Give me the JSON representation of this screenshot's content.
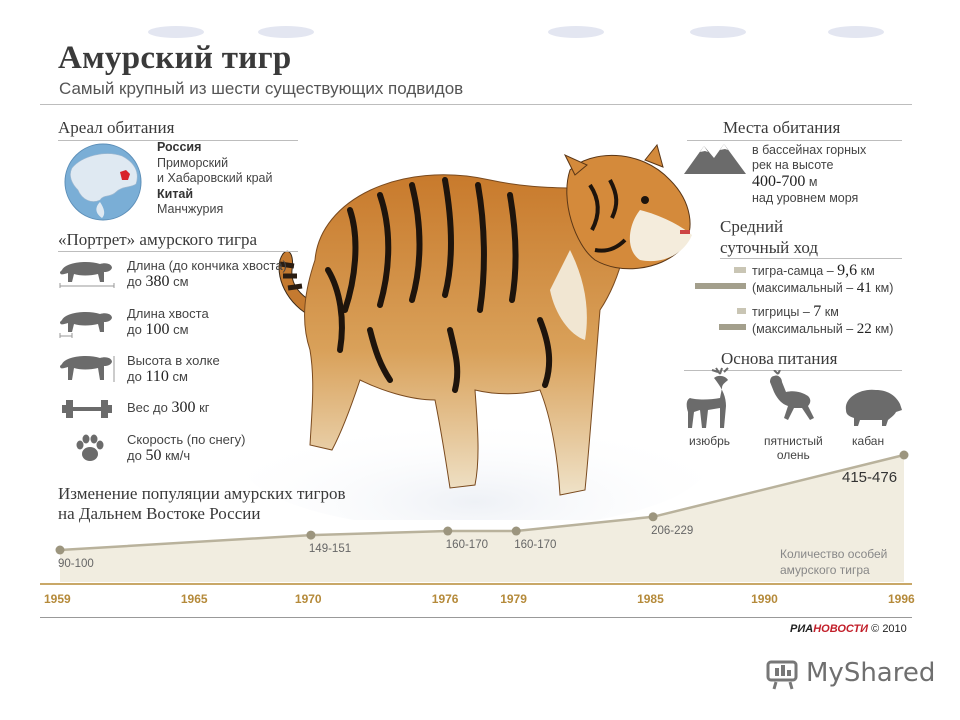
{
  "header": {
    "title": "Амурский тигр",
    "subtitle": "Самый крупный из шести существующих подвидов"
  },
  "range": {
    "heading": "Ареал обитания",
    "country1": "Россия",
    "region1a": "Приморский",
    "region1b": "и Хабаровский край",
    "country2": "Китай",
    "region2": "Манчжурия"
  },
  "portrait": {
    "heading": "«Портрет» амурского тигра",
    "items": [
      {
        "label": "Длина (до кончика хвоста)",
        "prefix": "до",
        "value": "380",
        "unit": "см",
        "icon": "tiger-length-icon"
      },
      {
        "label": "Длина хвоста",
        "prefix": "до",
        "value": "100",
        "unit": "см",
        "icon": "tiger-tail-icon"
      },
      {
        "label": "Высота в холке",
        "prefix": "до",
        "value": "110",
        "unit": "см",
        "icon": "tiger-height-icon"
      },
      {
        "label": "Вес",
        "prefix": "до",
        "value": "300",
        "unit": "кг",
        "icon": "barbell-icon"
      },
      {
        "label": "Скорость (по снегу)",
        "prefix": "до",
        "value": "50",
        "unit": "км/ч",
        "icon": "paw-icon"
      }
    ]
  },
  "habitat": {
    "heading": "Места обитания",
    "line1": "в бассейнах горных",
    "line2": "рек на высоте",
    "value": "400-700",
    "unit": "м",
    "line3": "над уровнем моря"
  },
  "daily": {
    "heading1": "Средний",
    "heading2": "суточный ход",
    "male": {
      "label": "тигра-самца –",
      "value": "9,6",
      "unit": "км",
      "max_prefix": "(максимальный –",
      "max_value": "41",
      "max_unit": "км)",
      "value_num": 9.6,
      "max_num": 41
    },
    "female": {
      "label": "тигрицы –",
      "value": "7",
      "unit": "км",
      "max_prefix": "(максимальный –",
      "max_value": "22",
      "max_unit": "км)",
      "value_num": 7,
      "max_num": 22
    },
    "bar_color": "#a39f8c"
  },
  "food": {
    "heading": "Основа питания",
    "items": [
      {
        "label1": "изюбрь",
        "label2": "",
        "icon": "red-deer-icon"
      },
      {
        "label1": "пятнистый",
        "label2": "олень",
        "icon": "sika-deer-icon"
      },
      {
        "label1": "кабан",
        "label2": "",
        "icon": "boar-icon"
      }
    ]
  },
  "population": {
    "heading1": "Изменение популяции амурских тигров",
    "heading2": "на Дальнем Востоке России",
    "legend1": "Количество особей",
    "legend2": "амурского тигра"
  },
  "chart_data": {
    "type": "area",
    "title": "Изменение популяции амурских тигров на Дальнем Востоке России",
    "x_ticks": [
      "1959",
      "1965",
      "1970",
      "1976",
      "1979",
      "1985",
      "1990",
      "1996"
    ],
    "x": [
      1959,
      1970,
      1976,
      1979,
      1985,
      1996
    ],
    "labels": [
      "90-100",
      "149-151",
      "160-170",
      "160-170",
      "206-229",
      "415-476"
    ],
    "values": [
      95,
      150,
      165,
      165,
      217.5,
      445.5
    ],
    "series": [
      {
        "name": "Количество особей амурского тигра",
        "values": [
          95,
          150,
          165,
          165,
          217.5,
          445.5
        ]
      }
    ],
    "colors": {
      "line": "#b9b29c",
      "fill": "#f1ede0",
      "point": "#9c957e",
      "axis": "#c9a868",
      "year_text": "#b58a3a"
    }
  },
  "footer": {
    "brand_ria": "РИА",
    "brand_novosti": "НОВОСТИ",
    "copyright": "© 2010",
    "watermark": "MyShared"
  },
  "colors": {
    "accent": "#b58a3a",
    "text": "#3a3a3a",
    "map_ocean": "#7aaed6",
    "map_land": "#dfe9f2",
    "map_highlight": "#d8222a"
  }
}
